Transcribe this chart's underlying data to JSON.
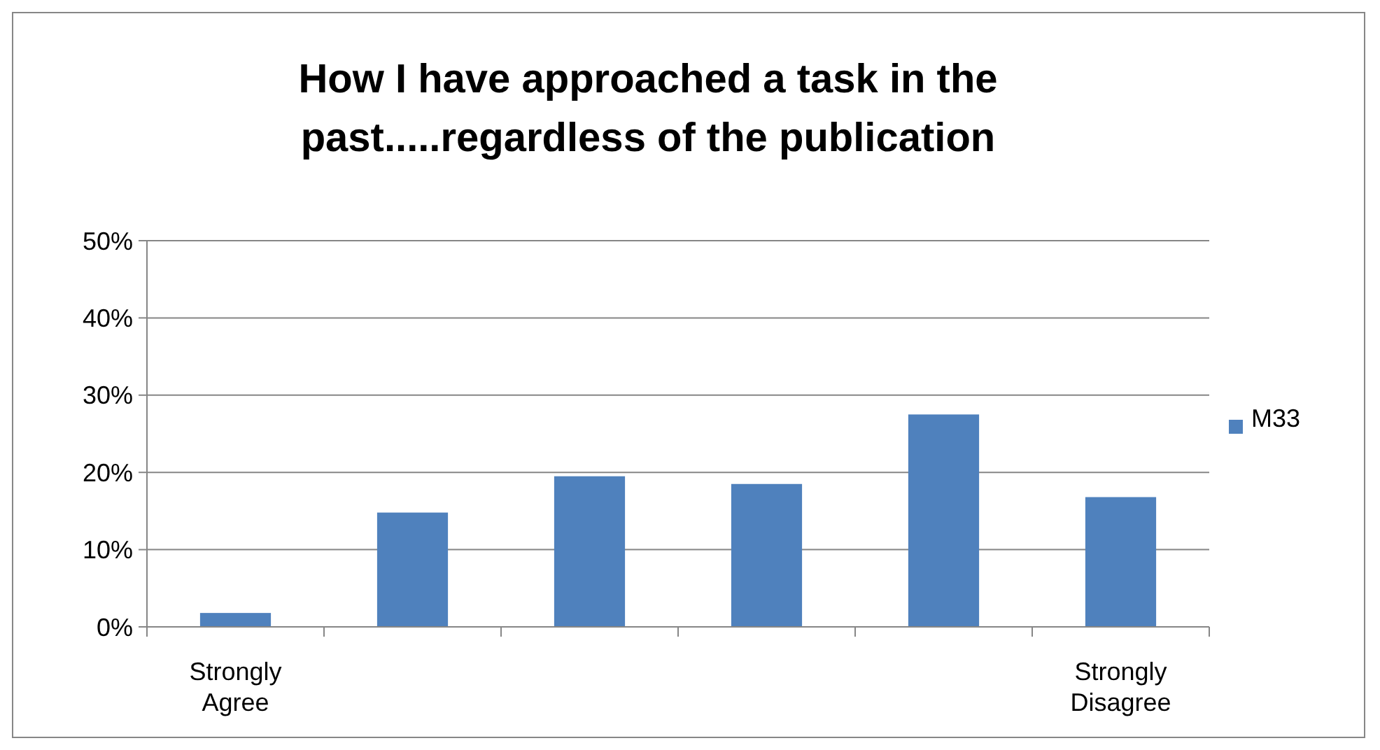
{
  "chart_data": {
    "type": "bar",
    "title": "How I have approached a task in the past.....regardless of the publication",
    "categories": [
      "Strongly Agree",
      null,
      null,
      null,
      null,
      "Strongly Disagree"
    ],
    "series": [
      {
        "name": "M33",
        "color": "#4f81bd",
        "values": [
          1.8,
          14.8,
          19.5,
          18.5,
          27.5,
          16.8
        ]
      }
    ],
    "ylim": [
      0,
      50
    ],
    "yticks": [
      {
        "value": 0,
        "label": "0%"
      },
      {
        "value": 10,
        "label": "10%"
      },
      {
        "value": 20,
        "label": "20%"
      },
      {
        "value": 30,
        "label": "30%"
      },
      {
        "value": 40,
        "label": "40%"
      },
      {
        "value": 50,
        "label": "50%"
      }
    ],
    "grid": "y",
    "legend": "right"
  }
}
